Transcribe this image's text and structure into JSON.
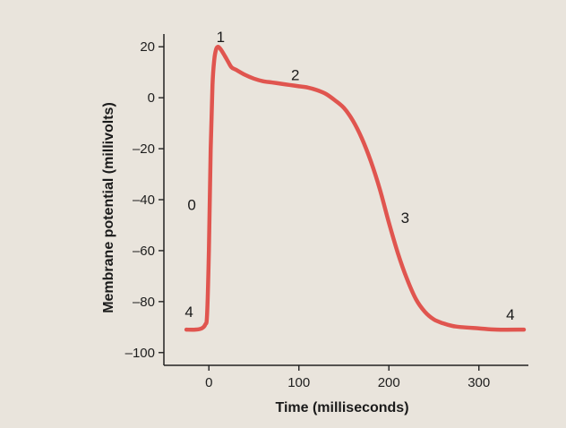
{
  "chart_data": {
    "type": "line",
    "title": "",
    "xlabel": "Time (milliseconds)",
    "ylabel": "Membrane potential (millivolts)",
    "xlim": [
      -50,
      355
    ],
    "ylim": [
      -105,
      25
    ],
    "x_ticks": [
      0,
      100,
      200,
      300
    ],
    "y_ticks": [
      20,
      0,
      -20,
      -40,
      -60,
      -80,
      -100
    ],
    "grid": false,
    "line_color": "#e0554f",
    "series": [
      {
        "x": [
          -25,
          -15,
          -8,
          -4,
          -2,
          0,
          2,
          4,
          6,
          8,
          10,
          12,
          15,
          20,
          25,
          30,
          40,
          50,
          60,
          70,
          80,
          90,
          100,
          110,
          120,
          130,
          140,
          150,
          160,
          170,
          180,
          190,
          200,
          210,
          220,
          230,
          240,
          250,
          260,
          270,
          280,
          300,
          320,
          350
        ],
        "y": [
          -91,
          -91,
          -90.5,
          -89,
          -85,
          -60,
          -20,
          5,
          15,
          19,
          20,
          19.5,
          18,
          15,
          12,
          11,
          9,
          7.5,
          6.5,
          6,
          5.5,
          5,
          4.5,
          4,
          3,
          1.5,
          -1,
          -4,
          -9,
          -16,
          -25,
          -36,
          -49,
          -61,
          -71,
          -79,
          -84,
          -87,
          -88.5,
          -89.5,
          -90,
          -90.5,
          -91,
          -91
        ]
      }
    ],
    "annotations": [
      {
        "text": "0",
        "x": -19,
        "y": -42
      },
      {
        "text": "1",
        "x": 13,
        "y": 24
      },
      {
        "text": "2",
        "x": 96,
        "y": 9
      },
      {
        "text": "3",
        "x": 218,
        "y": -47
      },
      {
        "text": "4",
        "x": -22,
        "y": -84
      },
      {
        "text": "4",
        "x": 335,
        "y": -85
      }
    ]
  }
}
